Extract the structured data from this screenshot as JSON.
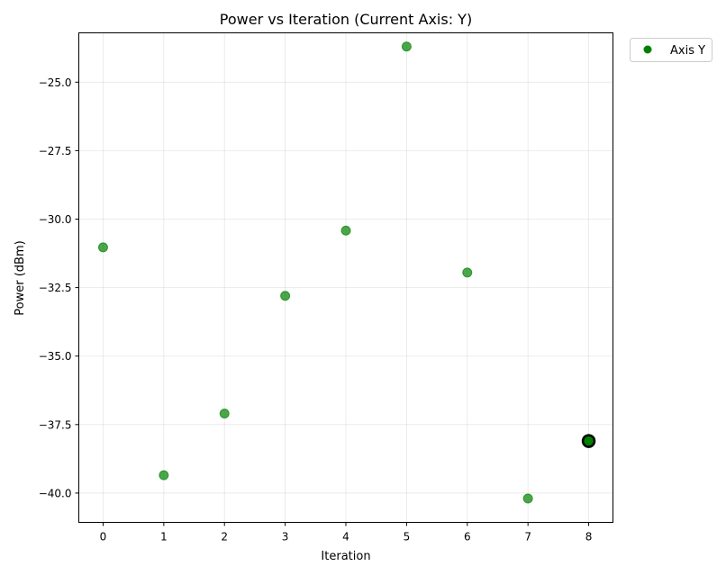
{
  "chart_data": {
    "type": "scatter",
    "title": "Power vs Iteration (Current Axis: Y)",
    "xlabel": "Iteration",
    "ylabel": "Power (dBm)",
    "xlim": [
      -0.4,
      8.4
    ],
    "ylim": [
      -41.07,
      -23.2
    ],
    "x_ticks": [
      0,
      1,
      2,
      3,
      4,
      5,
      6,
      7,
      8
    ],
    "x_tick_labels": [
      "0",
      "1",
      "2",
      "3",
      "4",
      "5",
      "6",
      "7",
      "8"
    ],
    "y_ticks": [
      -25.0,
      -27.5,
      -30.0,
      -32.5,
      -35.0,
      -37.5,
      -40.0
    ],
    "y_tick_labels": [
      "−25.0",
      "−27.5",
      "−30.0",
      "−32.5",
      "−35.0",
      "−37.5",
      "−40.0"
    ],
    "grid": true,
    "legend_position": "outside-top-right",
    "series": [
      {
        "name": "Axis Y",
        "color": "#008000",
        "x": [
          0,
          1,
          2,
          3,
          4,
          5,
          6,
          7,
          8
        ],
        "y": [
          -31.03,
          -39.35,
          -37.1,
          -32.8,
          -30.42,
          -23.7,
          -31.95,
          -40.2,
          -38.1
        ]
      }
    ],
    "highlight": {
      "x": 8,
      "y": -38.1,
      "edge_color": "#000000"
    }
  }
}
